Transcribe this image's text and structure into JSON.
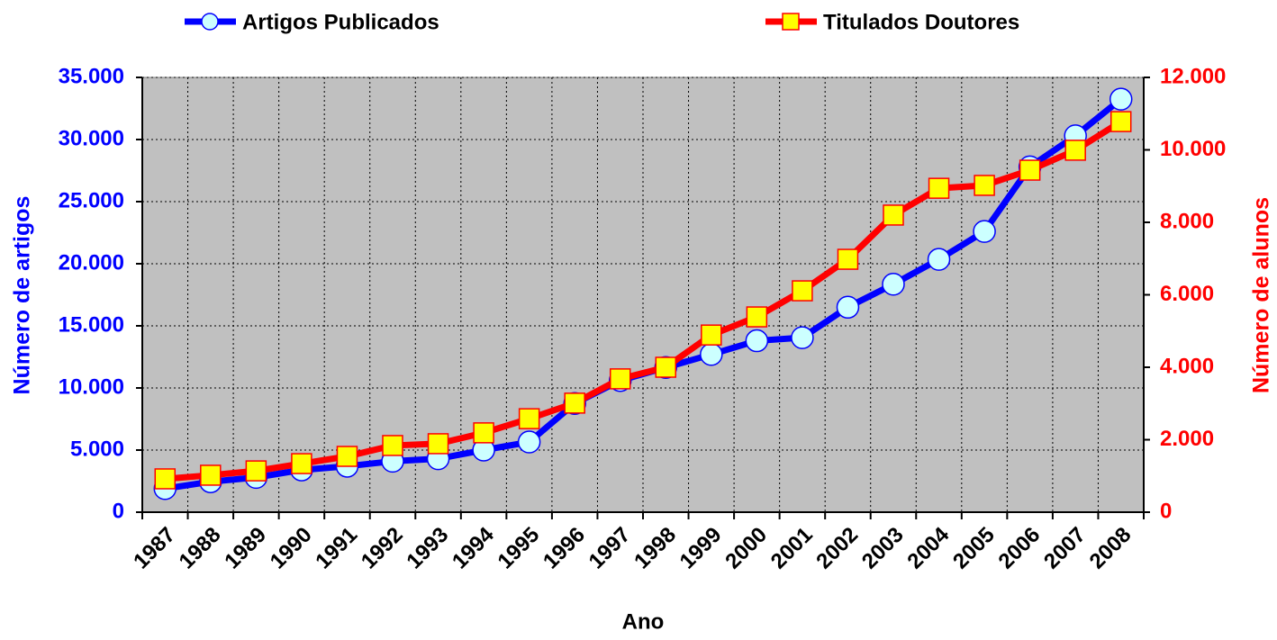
{
  "chart_data": {
    "type": "line",
    "x_label": "Ano",
    "y_label": "Número de artigos",
    "y2_label": "Número de alunos",
    "categories": [
      "1987",
      "1988",
      "1989",
      "1990",
      "1991",
      "1992",
      "1993",
      "1994",
      "1995",
      "1996",
      "1997",
      "1998",
      "1999",
      "2000",
      "2001",
      "2002",
      "2003",
      "2004",
      "2005",
      "2006",
      "2007",
      "2008"
    ],
    "series": [
      {
        "name": "Artigos Publicados",
        "color": "#0000ff",
        "marker": "circle",
        "marker_fill": "#ccffff",
        "values": [
          1900,
          2450,
          2800,
          3400,
          3700,
          4100,
          4300,
          5000,
          5650,
          8750,
          10600,
          11650,
          12700,
          13800,
          14050,
          16500,
          18350,
          20350,
          22600,
          27800,
          30300,
          33250
        ]
      },
      {
        "name": "Titulados Doutores",
        "color": "#ff0000",
        "marker": "square",
        "marker_fill": "#ffff00",
        "axis": "y2",
        "values": [
          920,
          1020,
          1140,
          1340,
          1540,
          1840,
          1890,
          2190,
          2580,
          3010,
          3680,
          4000,
          4890,
          5390,
          6110,
          6980,
          8200,
          8940,
          9020,
          9440,
          9990,
          10780
        ]
      }
    ],
    "ylim": [
      0,
      35000
    ],
    "yticks": [
      0,
      {
        "value": 5000,
        "label": "5.000"
      },
      {
        "value": 10000,
        "label": "10.000"
      },
      {
        "value": 15000,
        "label": "15.000"
      },
      {
        "value": 20000,
        "label": "20.000"
      },
      {
        "value": 25000,
        "label": "25.000"
      },
      {
        "value": 30000,
        "label": "30.000"
      },
      {
        "value": 35000,
        "label": "35.000"
      }
    ],
    "y2lim": [
      0,
      12000
    ],
    "y2ticks": [
      0,
      {
        "value": 2000,
        "label": "2.000"
      },
      {
        "value": 4000,
        "label": "4.000"
      },
      {
        "value": 6000,
        "label": "6.000"
      },
      {
        "value": 8000,
        "label": "8.000"
      },
      {
        "value": 10000,
        "label": "10.000"
      },
      {
        "value": 12000,
        "label": "12.000"
      }
    ],
    "grid": true,
    "legend": "top"
  }
}
